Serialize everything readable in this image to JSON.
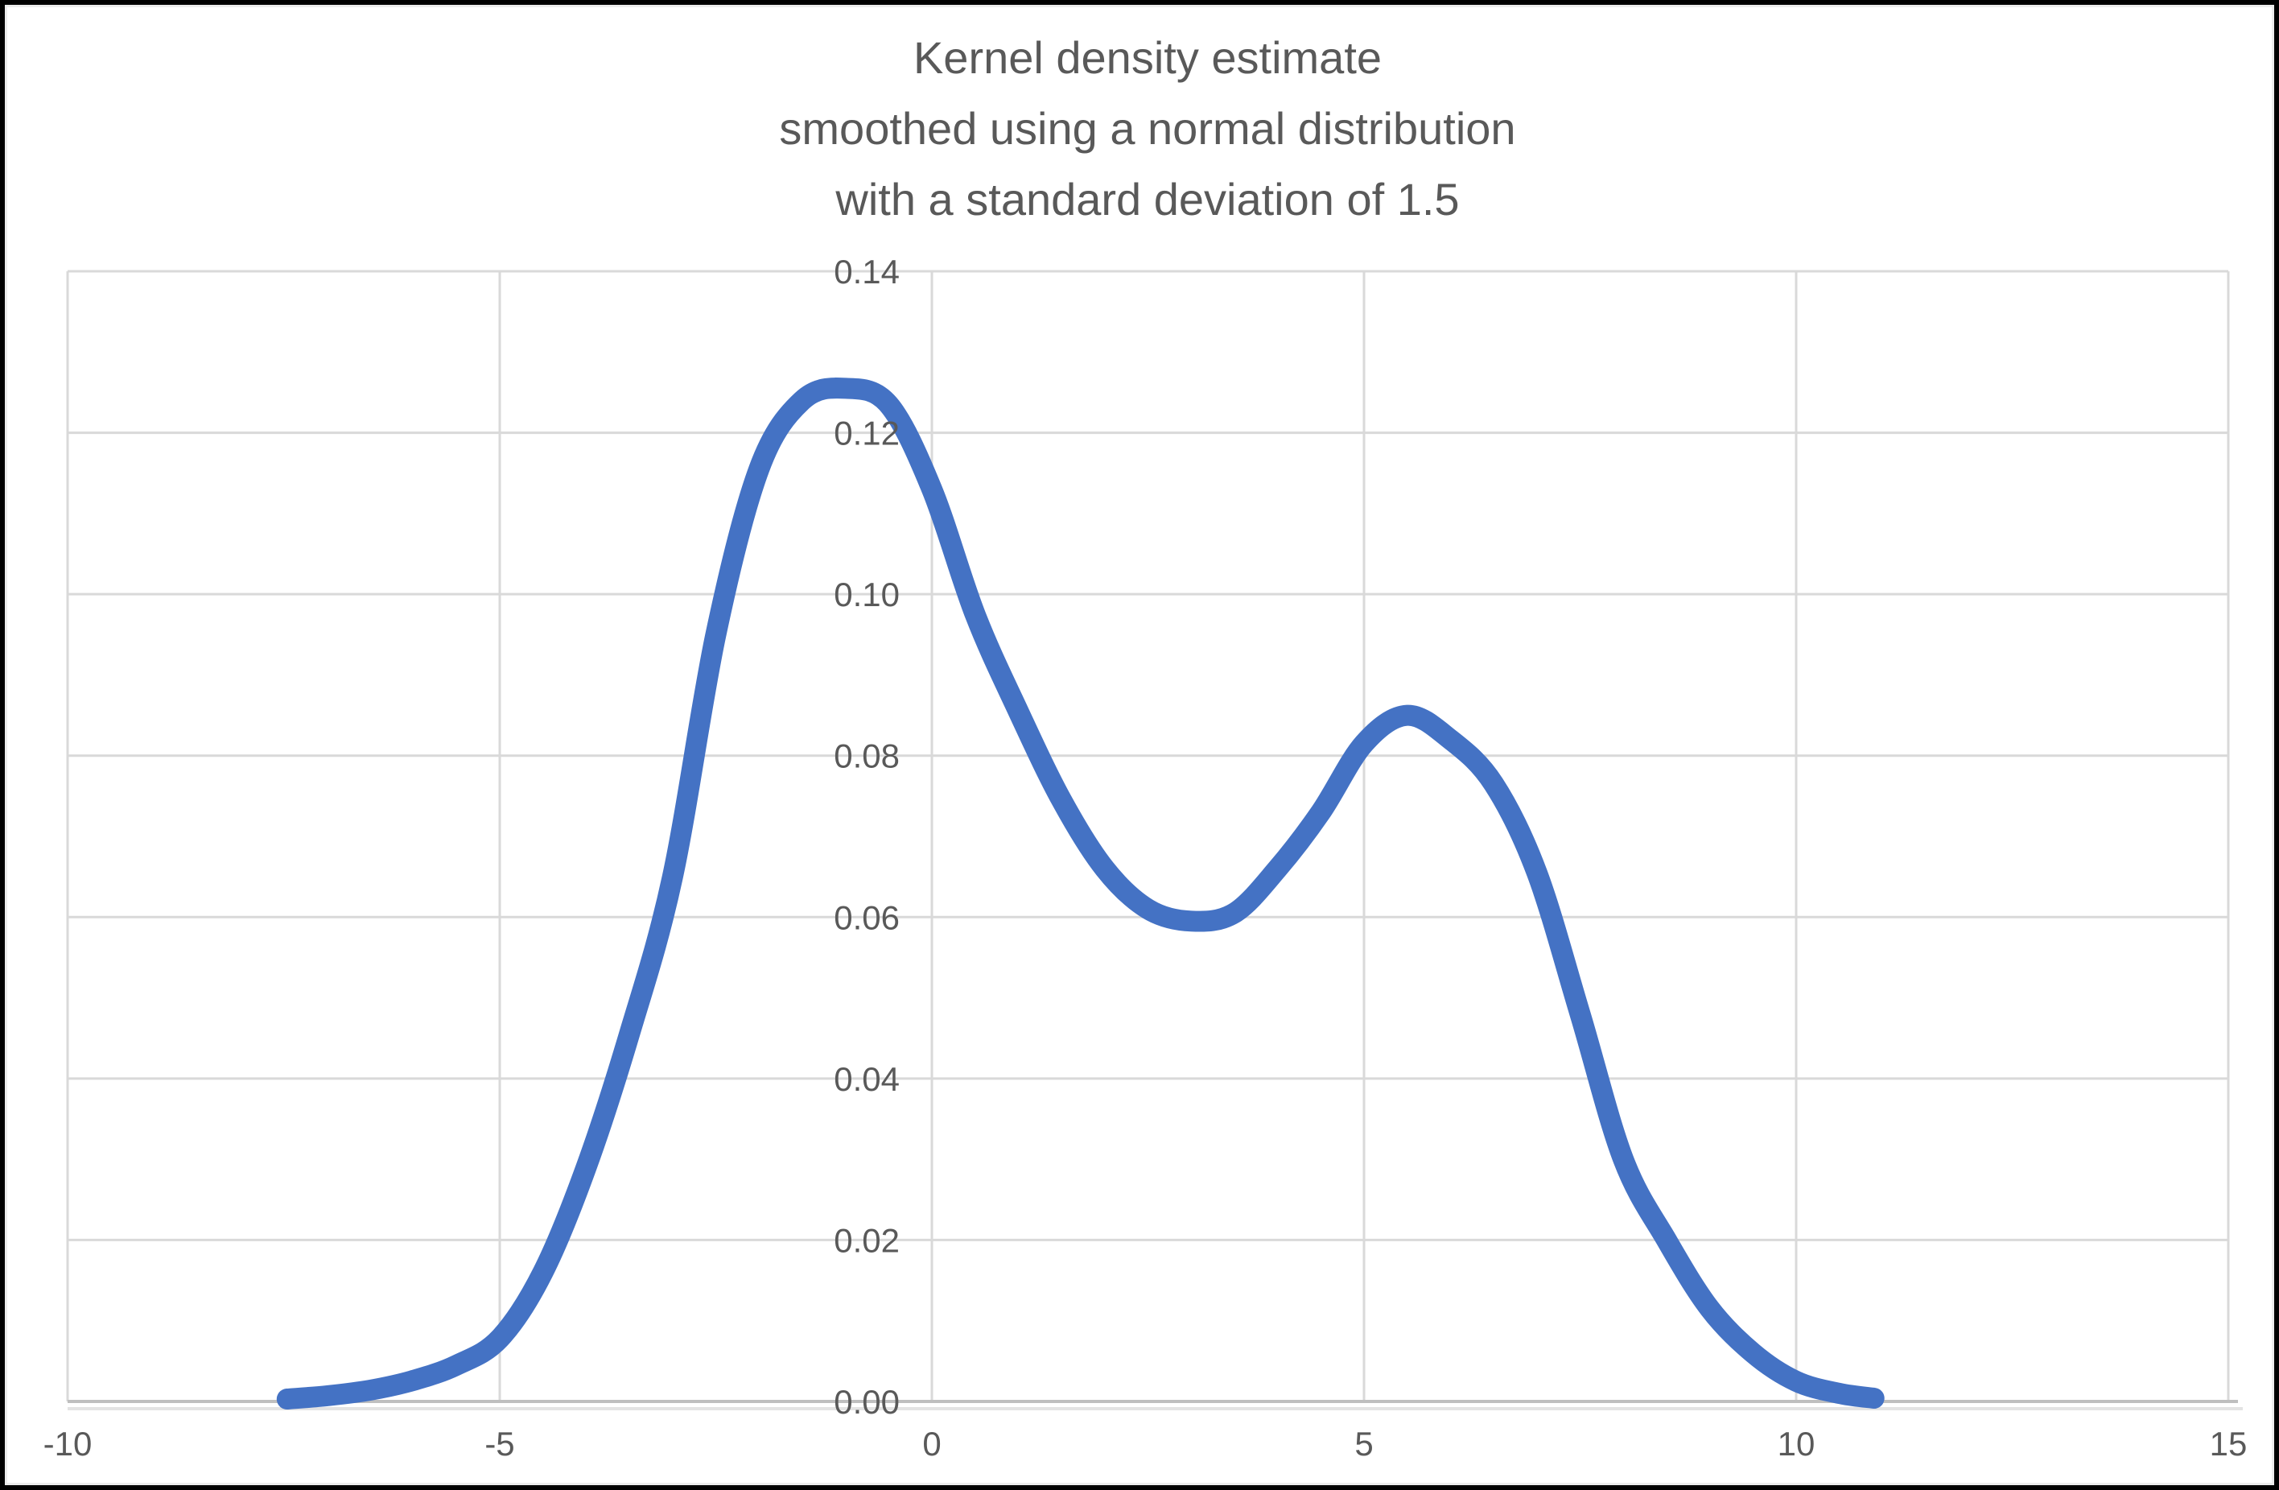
{
  "chart_data": {
    "type": "line",
    "title": "Kernel density estimate smoothed using a normal distribution with a standard deviation of 1.5",
    "title_lines": [
      "Kernel density estimate",
      "smoothed using a normal distribution",
      "with a standard deviation of 1.5"
    ],
    "xlabel": "",
    "ylabel": "",
    "xlim": [
      -10,
      15
    ],
    "ylim": [
      0,
      0.14
    ],
    "x_ticks": [
      -10,
      -5,
      0,
      5,
      10,
      15
    ],
    "x_tick_labels": [
      "-10",
      "-5",
      "0",
      "5",
      "10",
      "15"
    ],
    "y_ticks": [
      0,
      0.02,
      0.04,
      0.06,
      0.08,
      0.1,
      0.12,
      0.14
    ],
    "y_tick_labels": [
      "0.00",
      "0.02",
      "0.04",
      "0.06",
      "0.08",
      "0.10",
      "0.12",
      "0.14"
    ],
    "grid": true,
    "legend": "none",
    "series": [
      {
        "name": "kde-curve",
        "color": "#4472C4",
        "stroke_width": 26,
        "points": [
          [
            -7.46,
            0.0003
          ],
          [
            -7.0,
            0.0007
          ],
          [
            -6.5,
            0.0014
          ],
          [
            -6.0,
            0.0026
          ],
          [
            -5.5,
            0.0045
          ],
          [
            -5.0,
            0.0078
          ],
          [
            -4.5,
            0.016
          ],
          [
            -4.0,
            0.029
          ],
          [
            -3.5,
            0.0455
          ],
          [
            -3.0,
            0.065
          ],
          [
            -2.5,
            0.095
          ],
          [
            -2.0,
            0.1155
          ],
          [
            -1.5,
            0.124
          ],
          [
            -1.0,
            0.1255
          ],
          [
            -0.5,
            0.1235
          ],
          [
            0.0,
            0.113
          ],
          [
            0.5,
            0.0975
          ],
          [
            1.0,
            0.0855
          ],
          [
            1.5,
            0.0745
          ],
          [
            2.0,
            0.066
          ],
          [
            2.5,
            0.061
          ],
          [
            3.0,
            0.0595
          ],
          [
            3.5,
            0.0605
          ],
          [
            4.0,
            0.066
          ],
          [
            4.5,
            0.073
          ],
          [
            5.0,
            0.0815
          ],
          [
            5.5,
            0.085
          ],
          [
            6.0,
            0.082
          ],
          [
            6.5,
            0.0765
          ],
          [
            7.0,
            0.0655
          ],
          [
            7.5,
            0.048
          ],
          [
            8.0,
            0.03
          ],
          [
            8.5,
            0.02
          ],
          [
            9.0,
            0.0115
          ],
          [
            9.5,
            0.006
          ],
          [
            10.0,
            0.0025
          ],
          [
            10.5,
            0.001
          ],
          [
            10.9,
            0.0004
          ]
        ]
      }
    ],
    "colors": {
      "curve": "#4472C4",
      "text": "#595959",
      "gridline": "#D9D9D9",
      "axis_line": "#BFBFBF",
      "axis_shadow": "#E3E3E3",
      "frame": "#000000",
      "background": "#FFFFFF"
    }
  }
}
